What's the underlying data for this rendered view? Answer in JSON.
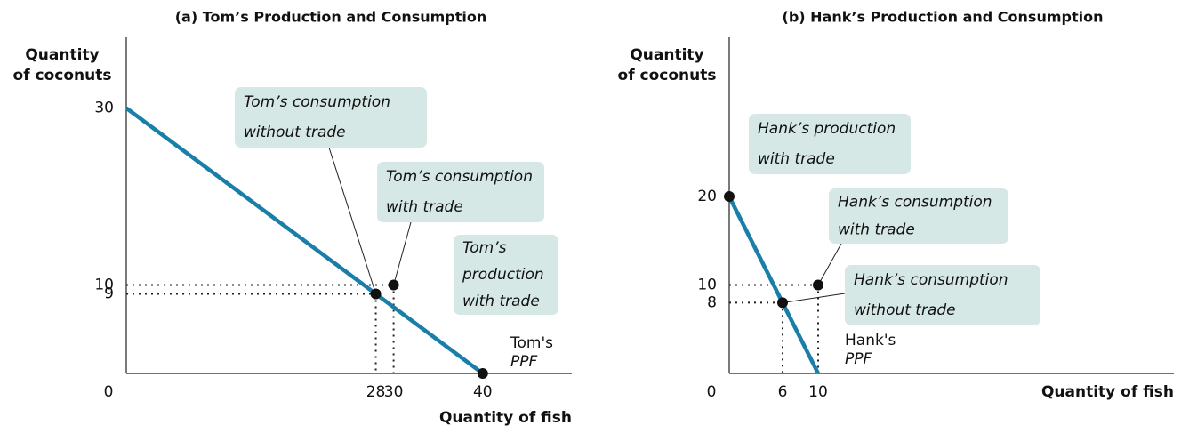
{
  "chart_data": [
    {
      "type": "line",
      "title": "(a) Tom’s Production and Consumption",
      "y_label": [
        "Quantity",
        "of coconuts"
      ],
      "x_label": "Quantity of fish",
      "xlim": [
        0,
        50
      ],
      "ylim": [
        0,
        38
      ],
      "xticks": [
        0,
        28,
        30,
        40
      ],
      "yticks": [
        9,
        10,
        30
      ],
      "series": [
        {
          "color": "#1a7fa8",
          "x": [
            0,
            40
          ],
          "values": [
            30,
            0
          ]
        }
      ],
      "points": {
        "x": [
          28,
          30,
          40
        ],
        "values": [
          9,
          10,
          0
        ]
      },
      "annotations": [
        [
          "Tom’s consumption",
          "without trade"
        ],
        [
          "Tom’s consumption",
          "with trade"
        ],
        [
          "Tom’s",
          "production",
          "with trade"
        ]
      ],
      "curve_label": [
        "Tom's",
        "PPF"
      ]
    },
    {
      "type": "line",
      "title": "(b) Hank’s Production and Consumption",
      "y_label": [
        "Quantity",
        "of coconuts"
      ],
      "x_label": "Quantity of fish",
      "xlim": [
        0,
        50
      ],
      "ylim": [
        0,
        38
      ],
      "xticks": [
        0,
        6,
        10
      ],
      "yticks": [
        8,
        10,
        20
      ],
      "series": [
        {
          "color": "#1a7fa8",
          "x": [
            0,
            10
          ],
          "values": [
            20,
            0
          ]
        }
      ],
      "points": {
        "x": [
          0,
          6,
          10
        ],
        "values": [
          20,
          8,
          10
        ]
      },
      "annotations": [
        [
          "Hank’s production",
          "with trade"
        ],
        [
          "Hank’s consumption",
          "with trade"
        ],
        [
          "Hank’s consumption",
          "without trade"
        ]
      ],
      "curve_label": [
        "Hank's",
        "PPF"
      ]
    }
  ]
}
